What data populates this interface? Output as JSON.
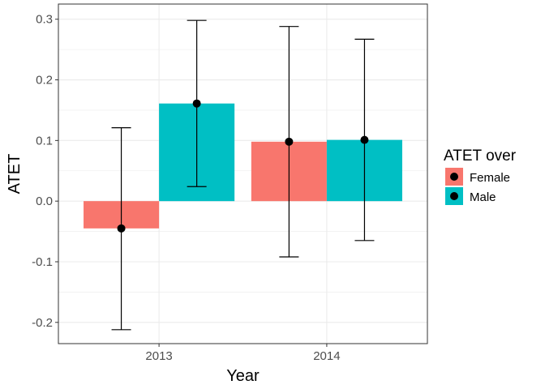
{
  "chart_data": {
    "type": "bar",
    "xlabel": "Year",
    "ylabel": "ATET",
    "categories": [
      "2013",
      "2014"
    ],
    "ylim": [
      -0.235,
      0.325
    ],
    "yticks": [
      -0.2,
      -0.1,
      0.0,
      0.1,
      0.2,
      0.3
    ],
    "ytick_labels": [
      "-0.2",
      "-0.1",
      "0.0",
      "0.1",
      "0.2",
      "0.3"
    ],
    "grid": true,
    "legend": {
      "title": "ATET over",
      "placement": "right"
    },
    "series": [
      {
        "name": "Female",
        "color": "#F8766D",
        "values": [
          -0.045,
          0.098
        ],
        "points": [
          -0.045,
          0.098
        ],
        "ci_lower": [
          -0.212,
          -0.092
        ],
        "ci_upper": [
          0.121,
          0.288
        ]
      },
      {
        "name": "Male",
        "color": "#00BFC4",
        "values": [
          0.161,
          0.101
        ],
        "points": [
          0.161,
          0.101
        ],
        "ci_lower": [
          0.024,
          -0.065
        ],
        "ci_upper": [
          0.298,
          0.267
        ]
      }
    ]
  }
}
